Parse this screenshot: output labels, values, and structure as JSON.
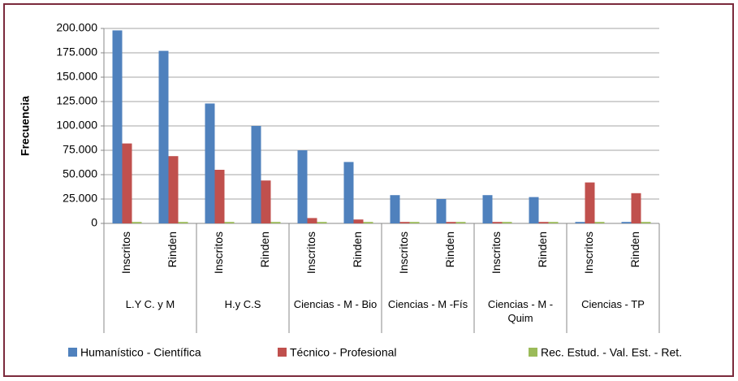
{
  "chart_data": {
    "type": "bar",
    "y_axis_label": "Frecuencia",
    "categories": [
      "Inscritos",
      "Rinden",
      "Inscritos",
      "Rinden",
      "Inscritos",
      "Rinden",
      "Inscritos",
      "Rinden",
      "Inscritos",
      "Rinden",
      "Inscritos",
      "Rinden"
    ],
    "groups": [
      "L.Y C. y M",
      "H.y C.S",
      "Ciencias - M - Bio",
      "Ciencias - M -Fís",
      "Ciencias - M - Quim",
      "Ciencias - TP"
    ],
    "series": [
      {
        "name": "Humanístico - Científica",
        "color": "#4f81bd",
        "values": [
          198000,
          177000,
          123000,
          100000,
          75000,
          63000,
          29000,
          25000,
          29000,
          27000,
          1500,
          1500
        ]
      },
      {
        "name": "Técnico - Profesional",
        "color": "#c0504d",
        "values": [
          82000,
          69000,
          55000,
          44000,
          5500,
          4000,
          1500,
          1500,
          1500,
          1500,
          42000,
          31000
        ]
      },
      {
        "name": "Rec. Estud. - Val. Est. - Ret.",
        "color": "#9bbb59",
        "values": [
          1500,
          1500,
          1500,
          1500,
          1500,
          1500,
          1500,
          1500,
          1500,
          1500,
          1500,
          1500
        ]
      }
    ],
    "ylim": [
      0,
      200000
    ],
    "yticks": [
      0,
      {
        "value": 25000,
        "label": "25.000"
      },
      {
        "value": 50000,
        "label": "50.000"
      },
      {
        "value": 75000,
        "label": "75.000"
      },
      {
        "value": 100000,
        "label": "100.000"
      },
      {
        "value": 125000,
        "label": "125.000"
      },
      {
        "value": 150000,
        "label": "150.000"
      },
      {
        "value": 175000,
        "label": "175.000"
      },
      {
        "value": 200000,
        "label": "200.000"
      }
    ],
    "grid": true,
    "legend": "bottom"
  }
}
